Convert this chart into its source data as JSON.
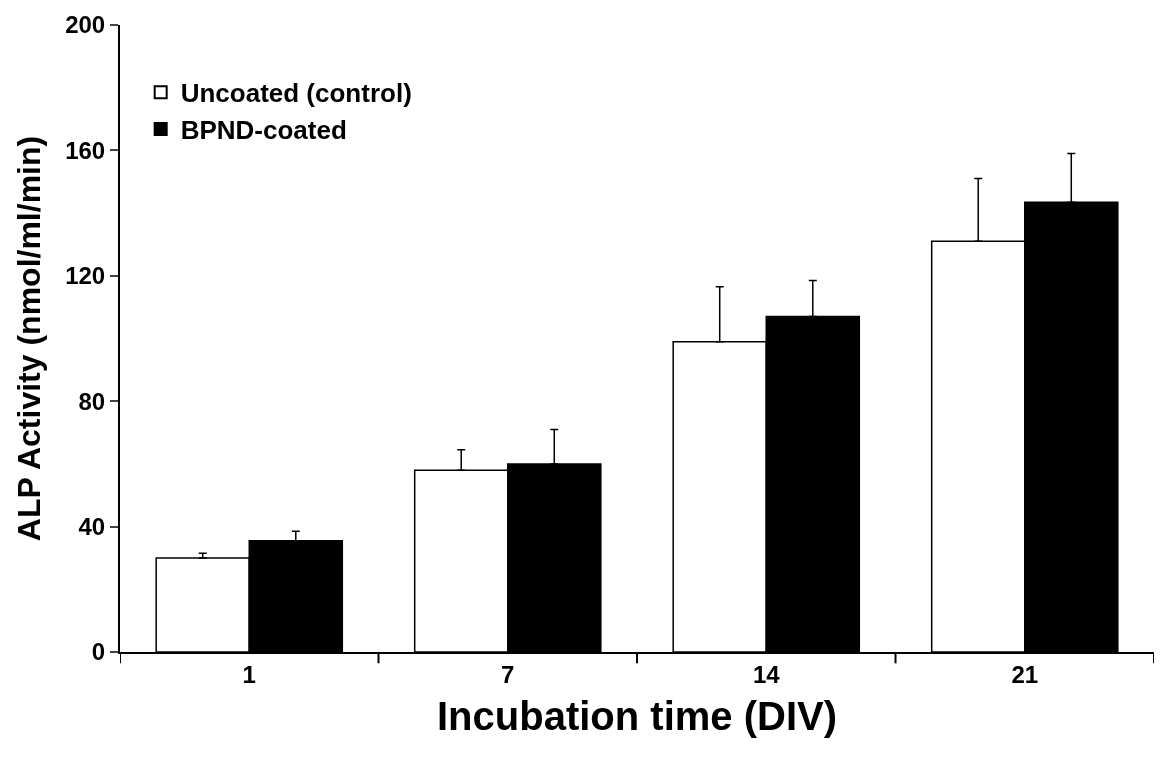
{
  "chart_data": {
    "type": "bar",
    "xlabel": "Incubation time (DIV)",
    "ylabel": "ALP Activity (nmol/ml/min)",
    "categories": [
      "1",
      "7",
      "14",
      "21"
    ],
    "series": [
      {
        "name": "Uncoated (control)",
        "color": "#ffffff",
        "values": [
          30,
          58,
          99,
          131
        ],
        "errors": [
          [
            30,
            31.5
          ],
          [
            58,
            64.5
          ],
          [
            99,
            116.5
          ],
          [
            131,
            151
          ]
        ]
      },
      {
        "name": "BPND-coated",
        "color": "#000000",
        "values": [
          35.5,
          60,
          107,
          143.5
        ],
        "errors": [
          [
            35.5,
            38.5
          ],
          [
            60,
            71
          ],
          [
            107,
            118.5
          ],
          [
            143.5,
            159
          ]
        ]
      }
    ],
    "ylim": [
      0,
      200
    ],
    "yticks": [
      0,
      40,
      80,
      120,
      160,
      200
    ],
    "legend": "top left"
  }
}
